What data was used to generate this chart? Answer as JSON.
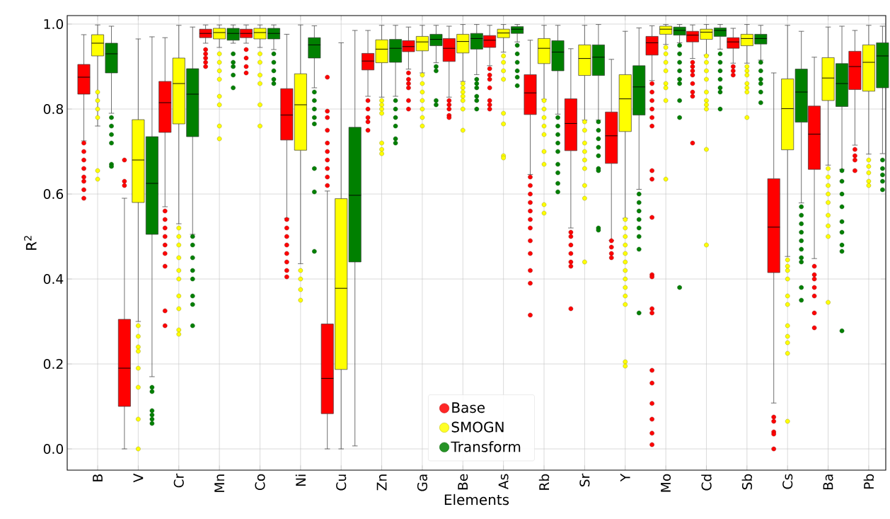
{
  "chart_data": {
    "type": "box",
    "xlabel": "Elements",
    "ylabel": "R$^{2}$",
    "categories": [
      "B",
      "V",
      "Cr",
      "Mn",
      "Co",
      "Ni",
      "Cu",
      "Zn",
      "Ga",
      "Be",
      "As",
      "Rb",
      "Sr",
      "Y",
      "Mo",
      "Cd",
      "Sb",
      "Cs",
      "Ba",
      "Pb"
    ],
    "ylim": [
      -0.05,
      1.02
    ],
    "yticks": [
      {
        "value": 0,
        "label": "0.0"
      },
      {
        "value": 0.2,
        "label": "0.2"
      },
      {
        "value": 0.4,
        "label": "0.4"
      },
      {
        "value": 0.6,
        "label": "0.6"
      },
      {
        "value": 0.8,
        "label": "0.8"
      },
      {
        "value": 1,
        "label": "1.0"
      }
    ],
    "grid": true,
    "legend": "bottom",
    "marker": "circle",
    "series": [
      {
        "name": "Base",
        "color": "#ff0000",
        "boxes": [
          {
            "low": 0.725,
            "q1": 0.835,
            "median": 0.875,
            "q3": 0.905,
            "high": 0.975,
            "outliers": [
              0.72,
              0.7,
              0.68,
              0.66,
              0.64,
              0.63,
              0.61,
              0.59
            ]
          },
          {
            "low": 0.0,
            "q1": 0.1,
            "median": 0.19,
            "q3": 0.305,
            "high": 0.59,
            "outliers": [
              0.68,
              0.63,
              0.62
            ]
          },
          {
            "low": 0.57,
            "q1": 0.745,
            "median": 0.815,
            "q3": 0.865,
            "high": 0.968,
            "outliers": [
              0.56,
              0.54,
              0.52,
              0.5,
              0.48,
              0.46,
              0.43,
              0.325,
              0.29
            ]
          },
          {
            "low": 0.955,
            "q1": 0.968,
            "median": 0.978,
            "q3": 0.988,
            "high": 0.998,
            "outliers": [
              0.94,
              0.93,
              0.92,
              0.91,
              0.9
            ]
          },
          {
            "low": 0.955,
            "q1": 0.968,
            "median": 0.978,
            "q3": 0.988,
            "high": 0.998,
            "outliers": [
              0.94,
              0.92,
              0.9,
              0.885
            ]
          },
          {
            "low": 0.543,
            "q1": 0.727,
            "median": 0.786,
            "q3": 0.848,
            "high": 0.976,
            "outliers": [
              0.54,
              0.52,
              0.5,
              0.48,
              0.46,
              0.44,
              0.42,
              0.405
            ]
          },
          {
            "low": 0.0,
            "q1": 0.083,
            "median": 0.166,
            "q3": 0.294,
            "high": 0.607,
            "outliers": [
              0.875,
              0.795,
              0.78,
              0.75,
              0.72,
              0.7,
              0.68,
              0.66,
              0.64,
              0.62
            ]
          },
          {
            "low": 0.83,
            "q1": 0.892,
            "median": 0.913,
            "q3": 0.931,
            "high": 0.985,
            "outliers": [
              0.82,
              0.8,
              0.78,
              0.77,
              0.75
            ]
          },
          {
            "low": 0.894,
            "q1": 0.935,
            "median": 0.947,
            "q3": 0.961,
            "high": 0.993,
            "outliers": [
              0.885,
              0.87,
              0.86,
              0.85,
              0.82,
              0.8
            ]
          },
          {
            "low": 0.828,
            "q1": 0.912,
            "median": 0.943,
            "q3": 0.966,
            "high": 0.995,
            "outliers": [
              0.82,
              0.81,
              0.8,
              0.785,
              0.78
            ]
          },
          {
            "low": 0.902,
            "q1": 0.945,
            "median": 0.962,
            "q3": 0.973,
            "high": 0.997,
            "outliers": [
              0.895,
              0.88,
              0.87,
              0.85,
              0.82,
              0.81,
              0.8
            ]
          },
          {
            "low": 0.646,
            "q1": 0.787,
            "median": 0.838,
            "q3": 0.881,
            "high": 0.962,
            "outliers": [
              0.64,
              0.62,
              0.6,
              0.58,
              0.56,
              0.54,
              0.52,
              0.49,
              0.46,
              0.42,
              0.39,
              0.315
            ]
          },
          {
            "low": 0.52,
            "q1": 0.702,
            "median": 0.766,
            "q3": 0.824,
            "high": 0.942,
            "outliers": [
              0.51,
              0.5,
              0.48,
              0.46,
              0.44,
              0.43,
              0.33
            ]
          },
          {
            "low": 0.491,
            "q1": 0.672,
            "median": 0.737,
            "q3": 0.793,
            "high": 0.917,
            "outliers": [
              0.49,
              0.475,
              0.46,
              0.45
            ]
          },
          {
            "low": 0.867,
            "q1": 0.927,
            "median": 0.956,
            "q3": 0.971,
            "high": 0.996,
            "outliers": [
              0.86,
              0.84,
              0.82,
              0.8,
              0.78,
              0.76,
              0.655,
              0.635,
              0.545,
              0.41,
              0.405,
              0.33,
              0.32,
              0.185,
              0.155,
              0.107,
              0.07,
              0.037,
              0.01
            ]
          },
          {
            "low": 0.919,
            "q1": 0.958,
            "median": 0.974,
            "q3": 0.983,
            "high": 0.998,
            "outliers": [
              0.91,
              0.9,
              0.89,
              0.88,
              0.86,
              0.84,
              0.83,
              0.72
            ]
          },
          {
            "low": 0.908,
            "q1": 0.943,
            "median": 0.958,
            "q3": 0.968,
            "high": 0.99,
            "outliers": [
              0.9,
              0.89,
              0.88
            ]
          },
          {
            "low": 0.108,
            "q1": 0.415,
            "median": 0.522,
            "q3": 0.636,
            "high": 0.885,
            "outliers": [
              0.075,
              0.065,
              0.04,
              0.035,
              0.0
            ]
          },
          {
            "low": 0.448,
            "q1": 0.658,
            "median": 0.741,
            "q3": 0.807,
            "high": 0.922,
            "outliers": [
              0.43,
              0.41,
              0.4,
              0.38,
              0.36,
              0.32,
              0.285
            ]
          },
          {
            "low": 0.715,
            "q1": 0.846,
            "median": 0.9,
            "q3": 0.936,
            "high": 0.985,
            "outliers": [
              0.705,
              0.69,
              0.68,
              0.655
            ]
          }
        ]
      },
      {
        "name": "SMOGN",
        "color": "#ffff00",
        "boxes": [
          {
            "low": 0.76,
            "q1": 0.925,
            "median": 0.955,
            "q3": 0.975,
            "high": 0.998,
            "outliers": [
              0.84,
              0.82,
              0.8,
              0.78,
              0.655,
              0.635
            ]
          },
          {
            "low": 0.3,
            "q1": 0.58,
            "median": 0.68,
            "q3": 0.775,
            "high": 0.965,
            "outliers": [
              0.29,
              0.265,
              0.24,
              0.23,
              0.19,
              0.145,
              0.07,
              0.0
            ]
          },
          {
            "low": 0.53,
            "q1": 0.765,
            "median": 0.86,
            "q3": 0.92,
            "high": 0.997,
            "outliers": [
              0.52,
              0.5,
              0.48,
              0.45,
              0.42,
              0.4,
              0.36,
              0.33,
              0.28,
              0.27
            ]
          },
          {
            "low": 0.945,
            "q1": 0.965,
            "median": 0.98,
            "q3": 0.99,
            "high": 0.998,
            "outliers": [
              0.93,
              0.91,
              0.89,
              0.87,
              0.83,
              0.81,
              0.76,
              0.73
            ]
          },
          {
            "low": 0.945,
            "q1": 0.965,
            "median": 0.98,
            "q3": 0.99,
            "high": 0.998,
            "outliers": [
              0.93,
              0.91,
              0.88,
              0.86,
              0.81,
              0.76
            ]
          },
          {
            "low": 0.436,
            "q1": 0.703,
            "median": 0.81,
            "q3": 0.883,
            "high": 0.998,
            "outliers": [
              0.42,
              0.4,
              0.375,
              0.35
            ]
          },
          {
            "low": 0.0,
            "q1": 0.187,
            "median": 0.378,
            "q3": 0.589,
            "high": 0.956
          },
          {
            "low": 0.828,
            "q1": 0.909,
            "median": 0.941,
            "q3": 0.963,
            "high": 0.997,
            "outliers": [
              0.82,
              0.81,
              0.8,
              0.79,
              0.72,
              0.705,
              0.695
            ]
          },
          {
            "low": 0.885,
            "q1": 0.937,
            "median": 0.958,
            "q3": 0.971,
            "high": 0.997,
            "outliers": [
              0.88,
              0.86,
              0.84,
              0.82,
              0.8,
              0.78,
              0.76
            ]
          },
          {
            "low": 0.865,
            "q1": 0.932,
            "median": 0.959,
            "q3": 0.976,
            "high": 0.999,
            "outliers": [
              0.86,
              0.85,
              0.84,
              0.83,
              0.82,
              0.8,
              0.75
            ]
          },
          {
            "low": 0.934,
            "q1": 0.968,
            "median": 0.979,
            "q3": 0.988,
            "high": 0.999,
            "outliers": [
              0.925,
              0.91,
              0.89,
              0.87,
              0.79,
              0.765,
              0.69,
              0.685
            ]
          },
          {
            "low": 0.823,
            "q1": 0.907,
            "median": 0.943,
            "q3": 0.966,
            "high": 0.997,
            "outliers": [
              0.82,
              0.8,
              0.78,
              0.76,
              0.74,
              0.7,
              0.67,
              0.575,
              0.555
            ]
          },
          {
            "low": 0.774,
            "q1": 0.879,
            "median": 0.919,
            "q3": 0.951,
            "high": 0.997,
            "outliers": [
              0.77,
              0.75,
              0.72,
              0.7,
              0.68,
              0.66,
              0.62,
              0.59,
              0.44
            ]
          },
          {
            "low": 0.543,
            "q1": 0.747,
            "median": 0.824,
            "q3": 0.881,
            "high": 0.983,
            "outliers": [
              0.54,
              0.52,
              0.5,
              0.48,
              0.46,
              0.44,
              0.42,
              0.4,
              0.38,
              0.36,
              0.34,
              0.205,
              0.195
            ]
          },
          {
            "low": 0.952,
            "q1": 0.976,
            "median": 0.988,
            "q3": 0.995,
            "high": 0.999,
            "outliers": [
              0.945,
              0.93,
              0.91,
              0.89,
              0.86,
              0.85,
              0.82,
              0.635
            ]
          },
          {
            "low": 0.927,
            "q1": 0.964,
            "median": 0.981,
            "q3": 0.988,
            "high": 0.999,
            "outliers": [
              0.925,
              0.91,
              0.89,
              0.87,
              0.84,
              0.82,
              0.81,
              0.8,
              0.705,
              0.48
            ]
          },
          {
            "low": 0.908,
            "q1": 0.949,
            "median": 0.966,
            "q3": 0.976,
            "high": 0.999,
            "outliers": [
              0.9,
              0.89,
              0.88,
              0.86,
              0.85,
              0.84,
              0.78
            ]
          },
          {
            "low": 0.453,
            "q1": 0.704,
            "median": 0.801,
            "q3": 0.871,
            "high": 0.997,
            "outliers": [
              0.445,
              0.43,
              0.42,
              0.4,
              0.36,
              0.34,
              0.29,
              0.265,
              0.25,
              0.225,
              0.065
            ]
          },
          {
            "low": 0.668,
            "q1": 0.82,
            "median": 0.873,
            "q3": 0.921,
            "high": 0.993,
            "outliers": [
              0.66,
              0.64,
              0.62,
              0.6,
              0.58,
              0.55,
              0.525,
              0.5,
              0.345
            ]
          },
          {
            "low": 0.694,
            "q1": 0.842,
            "median": 0.91,
            "q3": 0.951,
            "high": 0.997,
            "outliers": [
              0.68,
              0.665,
              0.65,
              0.63,
              0.62
            ]
          }
        ]
      },
      {
        "name": "Transform",
        "color": "#008000",
        "boxes": [
          {
            "low": 0.79,
            "q1": 0.885,
            "median": 0.93,
            "q3": 0.955,
            "high": 0.995,
            "outliers": [
              0.78,
              0.76,
              0.74,
              0.72,
              0.67,
              0.665
            ]
          },
          {
            "low": 0.17,
            "q1": 0.505,
            "median": 0.625,
            "q3": 0.735,
            "high": 0.97,
            "outliers": [
              0.145,
              0.135,
              0.09,
              0.08,
              0.07,
              0.06
            ]
          },
          {
            "low": 0.505,
            "q1": 0.735,
            "median": 0.835,
            "q3": 0.895,
            "high": 0.993,
            "outliers": [
              0.5,
              0.48,
              0.45,
              0.42,
              0.4,
              0.36,
              0.34,
              0.29
            ]
          },
          {
            "low": 0.955,
            "q1": 0.962,
            "median": 0.978,
            "q3": 0.99,
            "high": 0.998,
            "outliers": [
              0.93,
              0.91,
              0.9,
              0.88,
              0.85
            ]
          },
          {
            "low": 0.94,
            "q1": 0.965,
            "median": 0.978,
            "q3": 0.99,
            "high": 0.998,
            "outliers": [
              0.93,
              0.91,
              0.89,
              0.87,
              0.86
            ]
          },
          {
            "low": 0.85,
            "q1": 0.92,
            "median": 0.951,
            "q3": 0.968,
            "high": 0.996,
            "outliers": [
              0.84,
              0.82,
              0.8,
              0.78,
              0.765,
              0.66,
              0.605,
              0.465
            ]
          },
          {
            "low": 0.007,
            "q1": 0.44,
            "median": 0.597,
            "q3": 0.757,
            "high": 0.985
          },
          {
            "low": 0.83,
            "q1": 0.91,
            "median": 0.943,
            "q3": 0.964,
            "high": 0.997,
            "outliers": [
              0.82,
              0.8,
              0.78,
              0.76,
              0.73,
              0.72
            ]
          },
          {
            "low": 0.909,
            "q1": 0.949,
            "median": 0.964,
            "q3": 0.976,
            "high": 0.997,
            "outliers": [
              0.9,
              0.89,
              0.82,
              0.81
            ]
          },
          {
            "low": 0.881,
            "q1": 0.941,
            "median": 0.966,
            "q3": 0.978,
            "high": 0.999,
            "outliers": [
              0.87,
              0.86,
              0.85,
              0.83,
              0.82,
              0.8
            ]
          },
          {
            "low": 0.958,
            "q1": 0.978,
            "median": 0.988,
            "q3": 0.994,
            "high": 0.999,
            "outliers": [
              0.95,
              0.93,
              0.91,
              0.89,
              0.875,
              0.855
            ]
          },
          {
            "low": 0.788,
            "q1": 0.89,
            "median": 0.934,
            "q3": 0.961,
            "high": 0.997,
            "outliers": [
              0.78,
              0.76,
              0.74,
              0.72,
              0.7,
              0.67,
              0.65,
              0.625,
              0.605
            ]
          },
          {
            "low": 0.774,
            "q1": 0.879,
            "median": 0.922,
            "q3": 0.951,
            "high": 0.999,
            "outliers": [
              0.77,
              0.75,
              0.73,
              0.71,
              0.69,
              0.66,
              0.655,
              0.52,
              0.515
            ]
          },
          {
            "low": 0.611,
            "q1": 0.786,
            "median": 0.852,
            "q3": 0.902,
            "high": 0.991,
            "outliers": [
              0.6,
              0.58,
              0.56,
              0.54,
              0.52,
              0.5,
              0.47,
              0.32
            ]
          },
          {
            "low": 0.956,
            "q1": 0.974,
            "median": 0.985,
            "q3": 0.993,
            "high": 0.999,
            "outliers": [
              0.95,
              0.93,
              0.91,
              0.89,
              0.87,
              0.86,
              0.82,
              0.78,
              0.38
            ]
          },
          {
            "low": 0.941,
            "q1": 0.971,
            "median": 0.985,
            "q3": 0.991,
            "high": 0.999,
            "outliers": [
              0.93,
              0.91,
              0.89,
              0.87,
              0.85,
              0.84,
              0.8
            ]
          },
          {
            "low": 0.915,
            "q1": 0.953,
            "median": 0.966,
            "q3": 0.976,
            "high": 0.997,
            "outliers": [
              0.91,
              0.89,
              0.87,
              0.86,
              0.84,
              0.815
            ]
          },
          {
            "low": 0.579,
            "q1": 0.769,
            "median": 0.84,
            "q3": 0.894,
            "high": 0.983,
            "outliers": [
              0.57,
              0.55,
              0.53,
              0.51,
              0.49,
              0.47,
              0.45,
              0.44,
              0.38,
              0.35
            ]
          },
          {
            "low": 0.658,
            "q1": 0.806,
            "median": 0.86,
            "q3": 0.907,
            "high": 0.995,
            "outliers": [
              0.655,
              0.63,
              0.6,
              0.57,
              0.535,
              0.51,
              0.48,
              0.465,
              0.278
            ]
          },
          {
            "low": 0.695,
            "q1": 0.85,
            "median": 0.925,
            "q3": 0.956,
            "high": 0.995,
            "outliers": [
              0.68,
              0.66,
              0.645,
              0.63,
              0.61
            ]
          }
        ]
      }
    ]
  }
}
